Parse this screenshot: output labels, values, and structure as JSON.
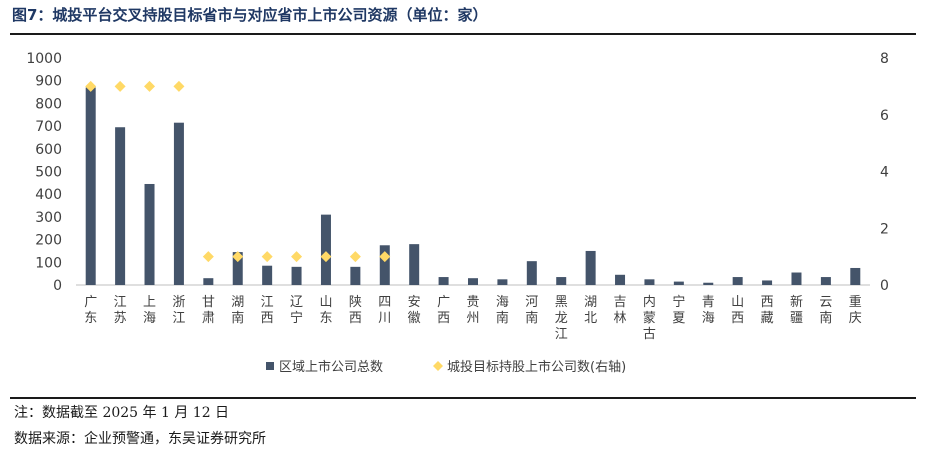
{
  "title": "图7：城投平台交叉持股目标省市与对应省市上市公司资源（单位：家）",
  "notes": {
    "date": "注：数据截至 2025 年 1 月 12 日",
    "source": "数据来源：企业预警通，东吴证券研究所"
  },
  "chart_data": {
    "type": "bar",
    "categories": [
      "广东",
      "江苏",
      "上海",
      "浙江",
      "甘肃",
      "湖南",
      "江西",
      "辽宁",
      "山东",
      "陕西",
      "四川",
      "安徽",
      "广西",
      "贵州",
      "海南",
      "河南",
      "黑龙江",
      "湖北",
      "吉林",
      "内蒙古",
      "宁夏",
      "青海",
      "山西",
      "西藏",
      "新疆",
      "云南",
      "重庆"
    ],
    "series": [
      {
        "name": "区域上市公司总数",
        "kind": "bar",
        "axis": "left",
        "color": "#44546a",
        "values": [
          870,
          695,
          445,
          715,
          30,
          145,
          85,
          80,
          310,
          80,
          175,
          180,
          35,
          30,
          25,
          105,
          35,
          150,
          45,
          25,
          15,
          10,
          35,
          20,
          55,
          35,
          75
        ]
      },
      {
        "name": "城投目标持股上市公司数(右轴)",
        "kind": "scatter",
        "axis": "right",
        "color": "#ffd966",
        "marker": "diamond",
        "values": [
          7,
          7,
          7,
          7,
          1,
          1,
          1,
          1,
          1,
          1,
          1,
          null,
          null,
          null,
          null,
          null,
          null,
          null,
          null,
          null,
          null,
          null,
          null,
          null,
          null,
          null,
          null
        ]
      }
    ],
    "y_left": {
      "min": 0,
      "max": 1000,
      "ticks": [
        "0",
        "100",
        "200",
        "300",
        "400",
        "500",
        "600",
        "700",
        "800",
        "900",
        "1000"
      ]
    },
    "y_right": {
      "min": 0,
      "max": 8,
      "ticks": [
        "0",
        "2",
        "4",
        "6",
        "8"
      ]
    },
    "legend_position": "bottom"
  }
}
